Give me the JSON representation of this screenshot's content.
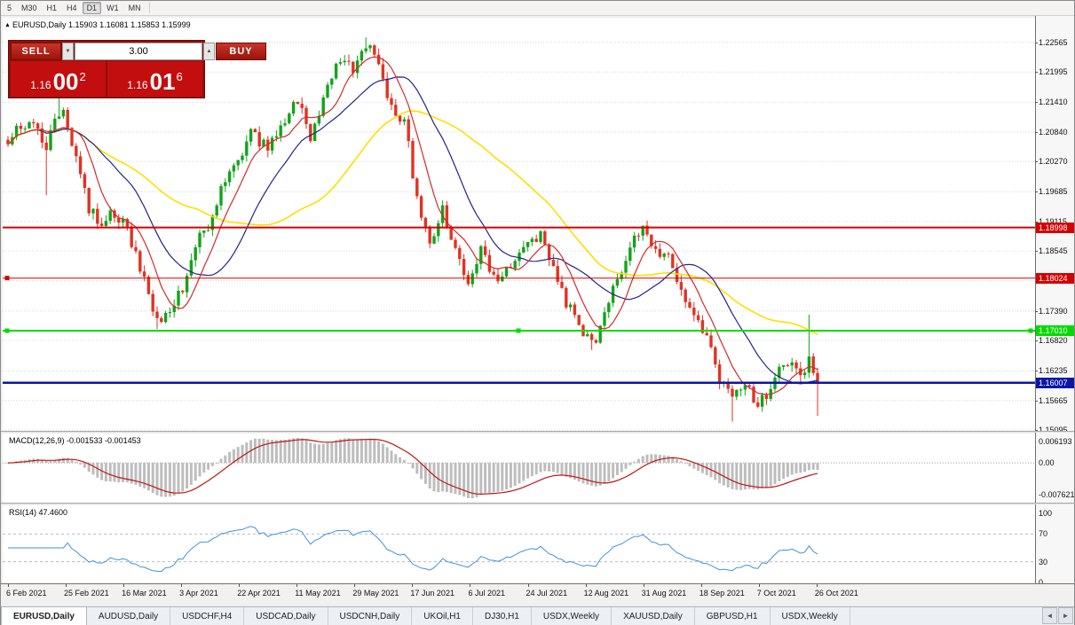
{
  "colors": {
    "up": "#12a31b",
    "down": "#e23222",
    "ma_fast": "#d42a2a",
    "ma_mid": "#232488",
    "ma_slow": "#ffdf00",
    "macd_hist": "#bdbdbd",
    "macd_signal": "#c01515",
    "rsi_line": "#4292d6",
    "rsi_level": "#b8b8d8",
    "grid": "#d6d6d6",
    "zero_line": "#9a9a9a"
  },
  "toolbar": {
    "timeframes": [
      "5",
      "M30",
      "H1",
      "H4",
      "D1",
      "W1",
      "MN"
    ],
    "active": "D1"
  },
  "chart": {
    "header_symbol": "EURUSD,Daily",
    "header_ohlc": "1.15903 1.16081 1.15853 1.15999",
    "collapse_icon": "▲"
  },
  "one_click": {
    "sell_label": "SELL",
    "buy_label": "BUY",
    "lot": "3.00",
    "spin_up": "▲",
    "spin_down": "▼",
    "sell_price": {
      "head": "1.16",
      "big": "00",
      "sup": "2"
    },
    "buy_price": {
      "head": "1.16",
      "big": "01",
      "sup": "6"
    }
  },
  "price_scale": [
    "1.22565",
    "1.21995",
    "1.21410",
    "1.20840",
    "1.20270",
    "1.19685",
    "1.19115",
    "1.18545",
    "1.17975",
    "1.17390",
    "1.16820",
    "1.16235",
    "1.15665",
    "1.15095"
  ],
  "levels": [
    {
      "value": 1.18998,
      "label": "1.18998",
      "color": "#d40000",
      "width": 2,
      "handles": []
    },
    {
      "value": 1.18024,
      "label": "1.18024",
      "color": "#d40000",
      "width": 1,
      "handles": [
        "left"
      ]
    },
    {
      "value": 1.1701,
      "label": "1.17010",
      "color": "#00dc00",
      "width": 2,
      "handles": [
        "left",
        "center",
        "right"
      ]
    },
    {
      "value": 1.16007,
      "label": "1.16007",
      "color": "#0b16a8",
      "width": 2.5,
      "handles": []
    }
  ],
  "macd": {
    "label": "MACD(12,26,9) -0.001533 -0.001453",
    "scale_top": "0.006193",
    "scale_zero": "0.00",
    "scale_bottom": "-0.007621"
  },
  "rsi": {
    "label": "RSI(14) 47.4600",
    "scale": [
      100,
      70,
      30,
      0
    ],
    "levels": [
      70,
      30
    ]
  },
  "time_axis": [
    "6 Feb 2021",
    "25 Feb 2021",
    "16 Mar 2021",
    "3 Apr 2021",
    "22 Apr 2021",
    "11 May 2021",
    "29 May 2021",
    "17 Jun 2021",
    "6 Jul 2021",
    "24 Jul 2021",
    "12 Aug 2021",
    "31 Aug 2021",
    "18 Sep 2021",
    "7 Oct 2021",
    "26 Oct 2021"
  ],
  "tabs": [
    "EURUSD,Daily",
    "AUDUSD,Daily",
    "USDCHF,H4",
    "USDCAD,Daily",
    "USDCNH,Daily",
    "UKOil,H1",
    "DJ30,H1",
    "USDX,Weekly",
    "XAUUSD,Daily",
    "GBPUSD,H1",
    "USDX,Weekly"
  ],
  "active_tab": 0,
  "tab_scroll": {
    "left": "◄",
    "right": "►"
  },
  "chart_data": {
    "type": "candlestick",
    "symbol": "EURUSD",
    "period": "Daily",
    "candle_count": 191,
    "last_close": 1.15999,
    "price_range_view": [
      1.1508,
      1.2304
    ],
    "close_anchors": [
      [
        0,
        1.206
      ],
      [
        3,
        1.2095
      ],
      [
        6,
        1.211
      ],
      [
        9,
        1.204
      ],
      [
        11,
        1.212
      ],
      [
        13,
        1.212
      ],
      [
        16,
        1.203
      ],
      [
        19,
        1.194
      ],
      [
        22,
        1.19
      ],
      [
        25,
        1.193
      ],
      [
        28,
        1.189
      ],
      [
        32,
        1.1795
      ],
      [
        35,
        1.1715
      ],
      [
        38,
        1.1745
      ],
      [
        41,
        1.178
      ],
      [
        44,
        1.187
      ],
      [
        47,
        1.19
      ],
      [
        50,
        1.197
      ],
      [
        54,
        1.203
      ],
      [
        57,
        1.208
      ],
      [
        61,
        1.2055
      ],
      [
        65,
        1.211
      ],
      [
        68,
        1.215
      ],
      [
        71,
        1.207
      ],
      [
        74,
        1.215
      ],
      [
        78,
        1.223
      ],
      [
        81,
        1.221
      ],
      [
        84,
        1.225
      ],
      [
        87,
        1.222
      ],
      [
        90,
        1.213
      ],
      [
        93,
        1.211
      ],
      [
        96,
        1.195
      ],
      [
        99,
        1.1865
      ],
      [
        102,
        1.193
      ],
      [
        105,
        1.185
      ],
      [
        108,
        1.18
      ],
      [
        111,
        1.186
      ],
      [
        114,
        1.18
      ],
      [
        117,
        1.182
      ],
      [
        120,
        1.185
      ],
      [
        123,
        1.188
      ],
      [
        126,
        1.188
      ],
      [
        129,
        1.179
      ],
      [
        132,
        1.174
      ],
      [
        135,
        1.17
      ],
      [
        138,
        1.169
      ],
      [
        140,
        1.173
      ],
      [
        143,
        1.18
      ],
      [
        146,
        1.187
      ],
      [
        149,
        1.1895
      ],
      [
        152,
        1.186
      ],
      [
        155,
        1.184
      ],
      [
        158,
        1.178
      ],
      [
        161,
        1.173
      ],
      [
        164,
        1.168
      ],
      [
        167,
        1.161
      ],
      [
        170,
        1.157
      ],
      [
        173,
        1.16
      ],
      [
        176,
        1.156
      ],
      [
        179,
        1.159
      ],
      [
        181,
        1.163
      ],
      [
        184,
        1.165
      ],
      [
        187,
        1.161
      ],
      [
        188,
        1.164
      ],
      [
        190,
        1.16
      ]
    ],
    "forced_wicks": {
      "highs": [
        [
          12,
          1.2168
        ],
        [
          84,
          1.2266
        ],
        [
          188,
          1.1732
        ]
      ],
      "lows": [
        [
          9,
          1.1962
        ],
        [
          35,
          1.1704
        ],
        [
          137,
          1.1664
        ],
        [
          170,
          1.1526
        ],
        [
          190,
          1.1537
        ]
      ]
    },
    "ma_periods": {
      "fast": 8,
      "mid": 20,
      "slow": 45
    },
    "macd_params": [
      12,
      26,
      9
    ],
    "rsi_period": 14,
    "horizontal_levels": [
      1.18998,
      1.18024,
      1.1701,
      1.16007
    ]
  }
}
